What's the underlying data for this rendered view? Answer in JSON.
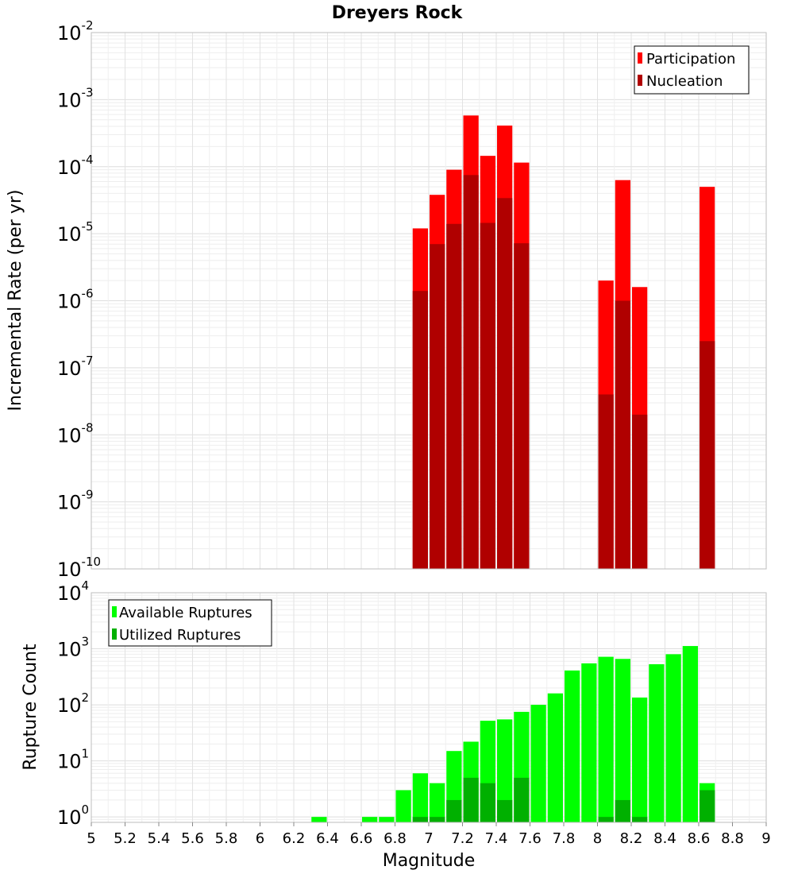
{
  "chart_data": [
    {
      "type": "bar",
      "title": "Dreyers Rock",
      "ylabel": "Incremental Rate (per yr)",
      "xlabel": "",
      "yscale": "log",
      "ylim": [
        1e-10,
        0.01
      ],
      "xlim": [
        5,
        9
      ],
      "bin_width": 0.1,
      "legend": "top-right",
      "grid": true,
      "y_tick_exponents": [
        -10,
        -9,
        -8,
        -7,
        -6,
        -5,
        -4,
        -3,
        -2
      ],
      "series": [
        {
          "name": "Participation",
          "color": "#ff0000",
          "x": [
            6.95,
            7.05,
            7.15,
            7.25,
            7.35,
            7.45,
            7.55,
            8.05,
            8.15,
            8.25,
            8.65
          ],
          "values": [
            1.2e-05,
            3.8e-05,
            9e-05,
            0.00058,
            0.000145,
            0.00041,
            0.000115,
            2e-06,
            6.3e-05,
            1.6e-06,
            5e-05
          ]
        },
        {
          "name": "Nucleation",
          "color": "#b00000",
          "x": [
            6.95,
            7.05,
            7.15,
            7.25,
            7.35,
            7.45,
            7.55,
            8.05,
            8.15,
            8.25,
            8.65
          ],
          "values": [
            1.4e-06,
            7e-06,
            1.4e-05,
            7.5e-05,
            1.45e-05,
            3.4e-05,
            7.2e-06,
            4e-08,
            1e-06,
            2e-08,
            2.5e-07
          ]
        }
      ]
    },
    {
      "type": "bar",
      "title": "",
      "xlabel": "Magnitude",
      "ylabel": "Rupture Count",
      "yscale": "log",
      "ylim": [
        0.8,
        10000
      ],
      "xlim": [
        5,
        9
      ],
      "bin_width": 0.1,
      "legend": "top-left",
      "grid": true,
      "y_tick_exponents": [
        0,
        1,
        2,
        3,
        4
      ],
      "x_ticks": [
        "5",
        "5.2",
        "5.4",
        "5.6",
        "5.8",
        "6",
        "6.2",
        "6.4",
        "6.6",
        "6.8",
        "7",
        "7.2",
        "7.4",
        "7.6",
        "7.8",
        "8",
        "8.2",
        "8.4",
        "8.6",
        "8.8",
        "9"
      ],
      "series": [
        {
          "name": "Available Ruptures",
          "color": "#00ff00",
          "x": [
            6.35,
            6.65,
            6.75,
            6.85,
            6.95,
            7.05,
            7.15,
            7.25,
            7.35,
            7.45,
            7.55,
            7.65,
            7.75,
            7.85,
            7.95,
            8.05,
            8.15,
            8.25,
            8.35,
            8.45,
            8.55,
            8.65
          ],
          "values": [
            1,
            1,
            1,
            3,
            6,
            4,
            15,
            22,
            52,
            55,
            75,
            100,
            160,
            410,
            550,
            720,
            660,
            135,
            530,
            800,
            1120,
            4
          ]
        },
        {
          "name": "Utilized Ruptures",
          "color": "#00b000",
          "x": [
            6.95,
            7.05,
            7.15,
            7.25,
            7.35,
            7.45,
            7.55,
            8.05,
            8.15,
            8.25,
            8.65
          ],
          "values": [
            1,
            1,
            2,
            5,
            4,
            2,
            5,
            1,
            2,
            1,
            3
          ]
        }
      ]
    }
  ]
}
